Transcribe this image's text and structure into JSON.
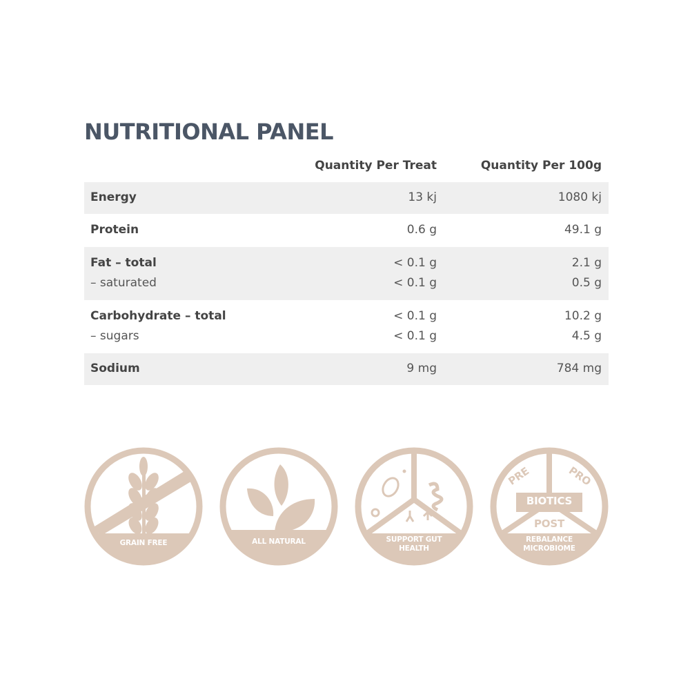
{
  "title": "NUTRITIONAL PANEL",
  "columns": [
    "",
    "Quantity Per Treat",
    "Quantity Per 100g"
  ],
  "rows": [
    {
      "label": "Energy",
      "per_treat": "13 kj",
      "per_100g": "1080 kj"
    },
    {
      "label": "Protein",
      "per_treat": "0.6 g",
      "per_100g": "49.1 g"
    },
    {
      "label": "Fat – total",
      "per_treat": "< 0.1 g",
      "per_100g": "2.1 g",
      "sub": {
        "label": "– saturated",
        "per_treat": "< 0.1 g",
        "per_100g": "0.5 g"
      }
    },
    {
      "label": "Carbohydrate – total",
      "per_treat": "< 0.1 g",
      "per_100g": "10.2 g",
      "sub": {
        "label": "– sugars",
        "per_treat": "< 0.1 g",
        "per_100g": "4.5 g"
      }
    },
    {
      "label": "Sodium",
      "per_treat": "9 mg",
      "per_100g": "784 mg"
    }
  ],
  "badges": [
    {
      "icon": "grain-free-icon",
      "line1": "GRAIN FREE"
    },
    {
      "icon": "leaf-icon",
      "line1": "ALL NATURAL"
    },
    {
      "icon": "gut-health-icon",
      "line1": "SUPPORT GUT",
      "line2": "HEALTH"
    },
    {
      "icon": "biotics-icon",
      "line1": "REBALANCE",
      "line2": "MICROBIOME",
      "pre": "PRE",
      "pro": "PRO",
      "biotics": "BIOTICS",
      "post": "POST"
    }
  ],
  "colors": {
    "title": "#4b5666",
    "badge": "#dcc8b8",
    "row_shade": "#efefef"
  }
}
